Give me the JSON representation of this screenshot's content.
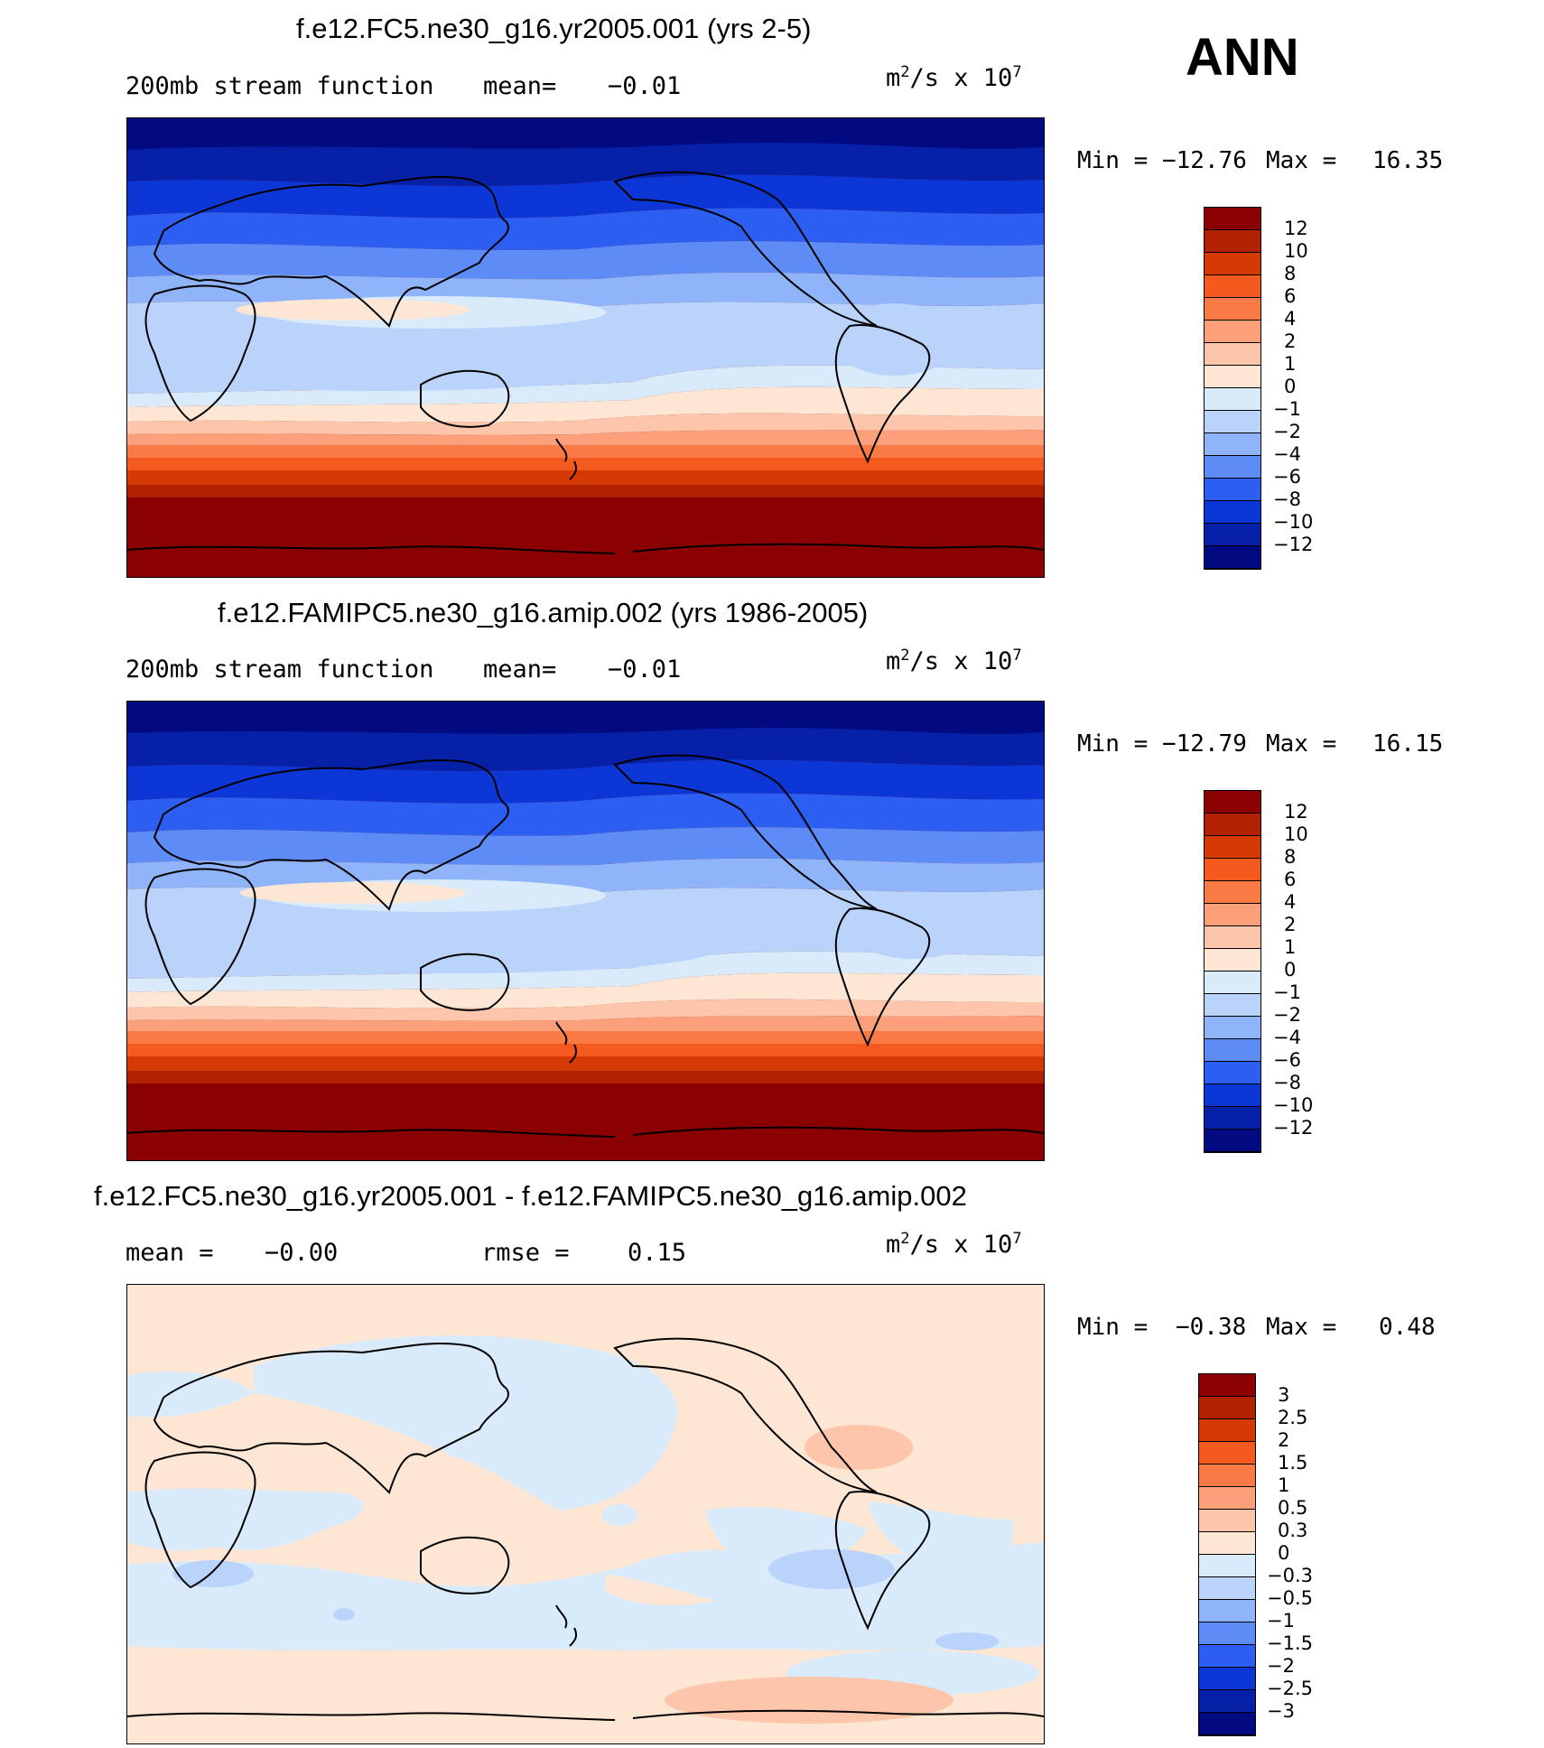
{
  "season": "ANN",
  "panels": [
    {
      "id": "test",
      "title": "f.e12.FC5.ne30_g16.yr2005.001 (yrs 2-5)",
      "left_label": "200mb stream function",
      "mean_label": "mean=",
      "mean_value": "−0.01",
      "rmse_label": "",
      "rmse_value": "",
      "units_base": "m",
      "units_exp1": "2",
      "units_mid": "/s x 10",
      "units_exp2": "7",
      "min_label": "Min =",
      "min_value": "−12.76",
      "max_label": "Max =",
      "max_value": "16.35",
      "colorbar_labels": [
        "12",
        "10",
        "8",
        "6",
        "4",
        "2",
        "1",
        "0",
        "−1",
        "−2",
        "−4",
        "−6",
        "−8",
        "−10",
        "−12"
      ]
    },
    {
      "id": "control",
      "title": "f.e12.FAMIPC5.ne30_g16.amip.002 (yrs 1986-2005)",
      "left_label": "200mb stream function",
      "mean_label": "mean=",
      "mean_value": "−0.01",
      "rmse_label": "",
      "rmse_value": "",
      "units_base": "m",
      "units_exp1": "2",
      "units_mid": "/s x 10",
      "units_exp2": "7",
      "min_label": "Min =",
      "min_value": "−12.79",
      "max_label": "Max =",
      "max_value": "16.15",
      "colorbar_labels": [
        "12",
        "10",
        "8",
        "6",
        "4",
        "2",
        "1",
        "0",
        "−1",
        "−2",
        "−4",
        "−6",
        "−8",
        "−10",
        "−12"
      ]
    },
    {
      "id": "difference",
      "title": "f.e12.FC5.ne30_g16.yr2005.001 - f.e12.FAMIPC5.ne30_g16.amip.002",
      "left_label": "",
      "mean_label": "mean =",
      "mean_value": "−0.00",
      "rmse_label": "rmse =",
      "rmse_value": "0.15",
      "units_base": "m",
      "units_exp1": "2",
      "units_mid": "/s x 10",
      "units_exp2": "7",
      "min_label": "Min =",
      "min_value": "−0.38",
      "max_label": "Max =",
      "max_value": "0.48",
      "colorbar_labels": [
        "3",
        "2.5",
        "2",
        "1.5",
        "1",
        "0.5",
        "0.3",
        "0",
        "−0.3",
        "−0.5",
        "−1",
        "−1.5",
        "−2",
        "−2.5",
        "−3"
      ]
    }
  ],
  "colorbar_colors": [
    "#8b0000",
    "#b22200",
    "#d63a04",
    "#f45a1e",
    "#fa7a45",
    "#fca07c",
    "#fdc6ab",
    "#fde6d4",
    "#d9ebfb",
    "#b9d3fb",
    "#8fb4f9",
    "#5d8cf6",
    "#2d5ef2",
    "#0d36d7",
    "#0720a8",
    "#010a80"
  ],
  "chart_data": [
    {
      "type": "heatmap",
      "title": "f.e12.FC5.ne30_g16.yr2005.001 (yrs 2-5)",
      "variable": "200mb stream function",
      "units": "m2/s x 10^7",
      "mean": -0.01,
      "min": -12.76,
      "max": 16.35,
      "contour_levels": [
        -12,
        -10,
        -8,
        -6,
        -4,
        -2,
        -1,
        0,
        1,
        2,
        4,
        6,
        8,
        10,
        12
      ]
    },
    {
      "type": "heatmap",
      "title": "f.e12.FAMIPC5.ne30_g16.amip.002 (yrs 1986-2005)",
      "variable": "200mb stream function",
      "units": "m2/s x 10^7",
      "mean": -0.01,
      "min": -12.79,
      "max": 16.15,
      "contour_levels": [
        -12,
        -10,
        -8,
        -6,
        -4,
        -2,
        -1,
        0,
        1,
        2,
        4,
        6,
        8,
        10,
        12
      ]
    },
    {
      "type": "heatmap",
      "title": "f.e12.FC5.ne30_g16.yr2005.001 - f.e12.FAMIPC5.ne30_g16.amip.002",
      "units": "m2/s x 10^7",
      "mean": -0.0,
      "rmse": 0.15,
      "min": -0.38,
      "max": 0.48,
      "contour_levels": [
        -3,
        -2.5,
        -2,
        -1.5,
        -1,
        -0.5,
        -0.3,
        0,
        0.3,
        0.5,
        1,
        1.5,
        2,
        2.5,
        3
      ]
    }
  ]
}
